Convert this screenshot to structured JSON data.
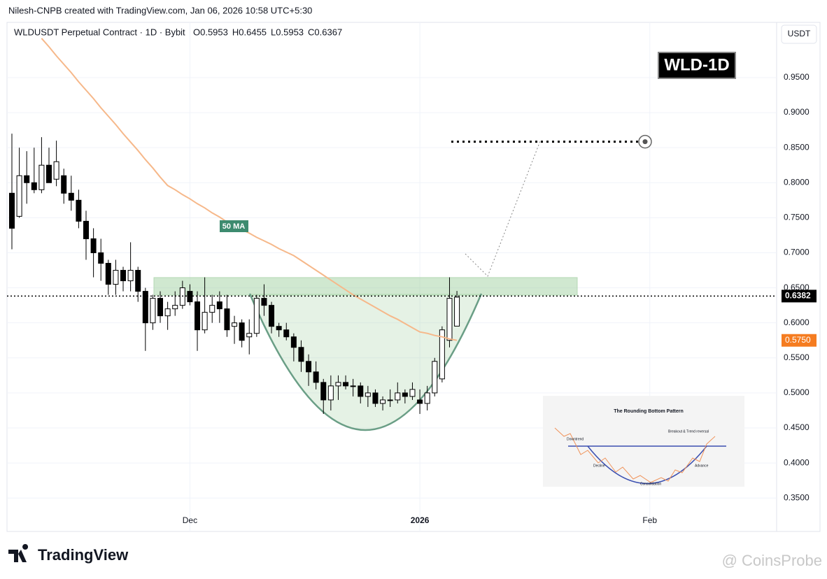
{
  "chart_data": {
    "type": "candlestick",
    "credit": "Nilesh-CNPB created with TradingView.com, Jan 06, 2026 10:58 UTC+5:30",
    "symbol": "WLDUSDT Perpetual Contract · 1D · Bybit",
    "ohlc_text": [
      "O0.5953",
      "H0.6455",
      "L0.5953",
      "C0.6367"
    ],
    "currency": "USDT",
    "badge": "WLD-1D",
    "ma_label": "50 MA",
    "logo": "TradingView",
    "watermark": "@ CoinsProbe",
    "up_color": "#ffffff",
    "down_color": "#000000",
    "ma_color": "#f6b88a",
    "open": [
      0.785,
      0.752,
      0.81,
      0.8,
      0.79,
      0.825,
      0.805,
      0.81,
      0.785,
      0.775,
      0.745,
      0.72,
      0.7,
      0.685,
      0.655,
      0.675,
      0.66,
      0.675,
      0.645,
      0.6,
      0.635,
      0.61,
      0.62,
      0.625,
      0.645,
      0.63,
      0.59,
      0.615,
      0.63,
      0.62,
      0.595,
      0.6,
      0.58,
      0.585,
      0.635,
      0.625,
      0.595,
      0.59,
      0.58,
      0.565,
      0.545,
      0.53,
      0.515,
      0.49,
      0.51,
      0.515,
      0.51,
      0.51,
      0.495,
      0.5,
      0.485,
      0.49,
      0.49,
      0.5,
      0.495,
      0.49,
      0.485,
      0.5,
      0.52,
      0.575,
      0.5953
    ],
    "high": [
      0.87,
      0.85,
      0.845,
      0.85,
      0.865,
      0.85,
      0.86,
      0.82,
      0.81,
      0.79,
      0.76,
      0.735,
      0.72,
      0.69,
      0.69,
      0.68,
      0.715,
      0.68,
      0.65,
      0.64,
      0.645,
      0.63,
      0.645,
      0.66,
      0.655,
      0.645,
      0.665,
      0.64,
      0.645,
      0.64,
      0.61,
      0.605,
      0.605,
      0.64,
      0.655,
      0.63,
      0.6,
      0.6,
      0.585,
      0.575,
      0.555,
      0.545,
      0.52,
      0.525,
      0.525,
      0.525,
      0.52,
      0.515,
      0.51,
      0.505,
      0.495,
      0.505,
      0.515,
      0.505,
      0.515,
      0.505,
      0.51,
      0.55,
      0.595,
      0.665,
      0.6455
    ],
    "low": [
      0.705,
      0.75,
      0.77,
      0.785,
      0.785,
      0.8,
      0.795,
      0.77,
      0.76,
      0.735,
      0.69,
      0.665,
      0.66,
      0.64,
      0.64,
      0.645,
      0.645,
      0.63,
      0.56,
      0.59,
      0.6,
      0.59,
      0.61,
      0.62,
      0.625,
      0.56,
      0.585,
      0.6,
      0.6,
      0.58,
      0.57,
      0.565,
      0.555,
      0.58,
      0.61,
      0.585,
      0.58,
      0.575,
      0.545,
      0.53,
      0.51,
      0.505,
      0.47,
      0.475,
      0.49,
      0.505,
      0.495,
      0.485,
      0.48,
      0.48,
      0.475,
      0.48,
      0.485,
      0.485,
      0.49,
      0.47,
      0.475,
      0.495,
      0.515,
      0.565,
      0.5953
    ],
    "close": [
      0.735,
      0.81,
      0.8,
      0.79,
      0.825,
      0.8,
      0.83,
      0.785,
      0.775,
      0.745,
      0.72,
      0.7,
      0.685,
      0.655,
      0.675,
      0.66,
      0.675,
      0.645,
      0.6,
      0.635,
      0.61,
      0.62,
      0.625,
      0.65,
      0.63,
      0.59,
      0.615,
      0.625,
      0.62,
      0.59,
      0.6,
      0.575,
      0.585,
      0.635,
      0.625,
      0.595,
      0.59,
      0.58,
      0.565,
      0.545,
      0.53,
      0.515,
      0.49,
      0.51,
      0.515,
      0.51,
      0.51,
      0.495,
      0.5,
      0.485,
      0.49,
      0.49,
      0.5,
      0.495,
      0.505,
      0.485,
      0.5,
      0.545,
      0.59,
      0.635,
      0.6367
    ],
    "ma": [
      null,
      null,
      null,
      null,
      1.006,
      0.994,
      0.981,
      0.969,
      0.957,
      0.944,
      0.932,
      0.92,
      0.907,
      0.895,
      0.883,
      0.87,
      0.858,
      0.846,
      0.833,
      0.821,
      0.808,
      0.796,
      0.79,
      0.783,
      0.777,
      0.77,
      0.764,
      0.757,
      0.751,
      0.744,
      0.738,
      0.733,
      0.728,
      0.722,
      0.717,
      0.712,
      0.706,
      0.701,
      0.696,
      0.689,
      0.682,
      0.675,
      0.668,
      0.661,
      0.654,
      0.647,
      0.64,
      0.634,
      0.628,
      0.622,
      0.616,
      0.61,
      0.605,
      0.599,
      0.593,
      0.587,
      0.585,
      0.582,
      0.58,
      0.577,
      0.575
    ],
    "xlim": [
      -0.66,
      103.1
    ],
    "xticks": [
      {
        "value": 24,
        "label": "Dec"
      },
      {
        "value": 55,
        "label": "2026"
      },
      {
        "value": 86,
        "label": "Feb"
      }
    ],
    "ylim": [
      0.3023,
      1.0288
    ],
    "yticks": [
      {
        "value": 0.95,
        "label": "0.9500"
      },
      {
        "value": 0.9,
        "label": "0.9000"
      },
      {
        "value": 0.85,
        "label": "0.8500"
      },
      {
        "value": 0.8,
        "label": "0.8000"
      },
      {
        "value": 0.75,
        "label": "0.7500"
      },
      {
        "value": 0.7,
        "label": "0.7000"
      },
      {
        "value": 0.65,
        "label": "0.6500"
      },
      {
        "value": 0.6,
        "label": "0.6000"
      },
      {
        "value": 0.55,
        "label": "0.5500"
      },
      {
        "value": 0.5,
        "label": "0.5000"
      },
      {
        "value": 0.45,
        "label": "0.4500"
      },
      {
        "value": 0.4,
        "label": "0.4000"
      },
      {
        "value": 0.35,
        "label": "0.3500"
      }
    ],
    "last_price": 0.6382,
    "ma_last": {
      "value": 0.575,
      "label": "0.5750"
    },
    "resistance_zone": [
      0.6396,
      0.6646
    ],
    "target": 0.8585,
    "grid": true,
    "inset": {
      "title": "The Rounding Bottom Pattern",
      "labels": [
        "Downtrend",
        "Breakout & Trend reversal",
        "Decline",
        "Advance",
        "Consolidation"
      ]
    }
  }
}
